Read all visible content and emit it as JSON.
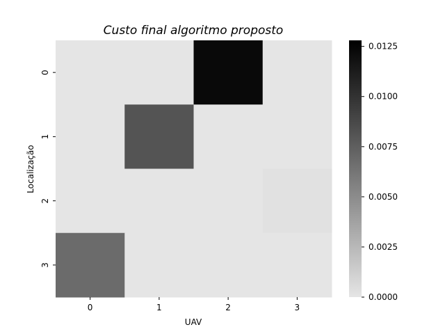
{
  "chart_data": {
    "type": "heatmap",
    "title": "Custo final algoritmo proposto",
    "xlabel": "UAV",
    "ylabel": "Localização",
    "x_categories": [
      "0",
      "1",
      "2",
      "3"
    ],
    "y_categories": [
      "0",
      "1",
      "2",
      "3"
    ],
    "values": [
      [
        0,
        0,
        0.0123,
        0
      ],
      [
        0,
        0.0081,
        0,
        0
      ],
      [
        0,
        0,
        0,
        0.0002
      ],
      [
        0.0068,
        0,
        0,
        0
      ]
    ],
    "vmin": 0,
    "vmax": 0.0128,
    "colormap": [
      "#e5e5e5",
      "#000000"
    ],
    "colorbar": {
      "ticks": [
        0,
        0.0025,
        0.005,
        0.0075,
        0.01,
        0.0125
      ],
      "tick_labels": [
        "0.0000",
        "0.0025",
        "0.0050",
        "0.0075",
        "0.0100",
        "0.0125"
      ]
    }
  }
}
